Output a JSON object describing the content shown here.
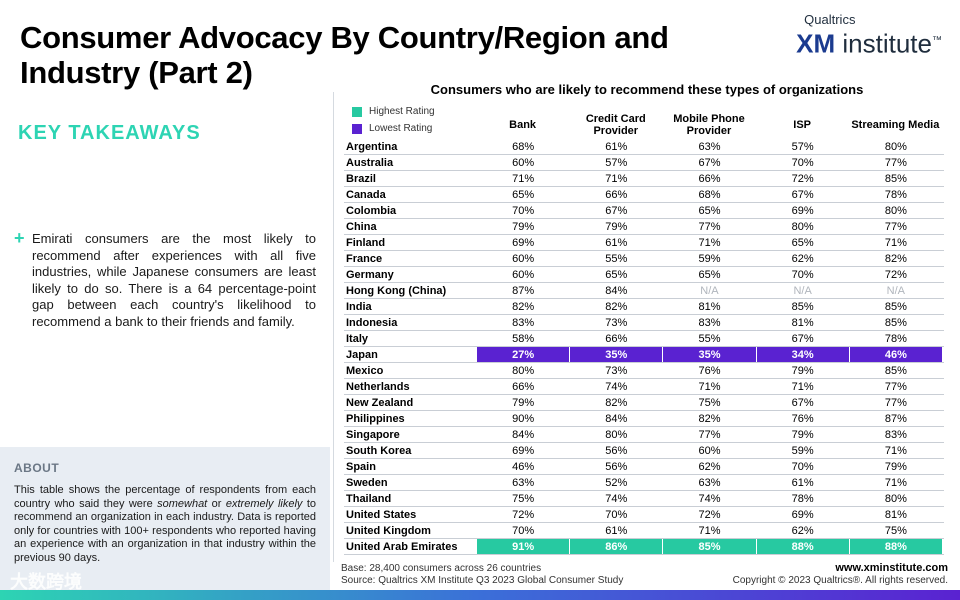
{
  "title": "Consumer Advocacy By Country/Region and Industry (Part 2)",
  "brand": {
    "top": "Qualtrics",
    "xm": "XM",
    "institute": "institute",
    "tm": "™"
  },
  "takeaways": {
    "heading": "KEY TAKEAWAYS",
    "bullet": "Emirati consumers are the most likely to recommend after experiences with all five industries, while Japanese consumers are least likely to do so. There is a 64 percentage-point gap between each country's likelihood to recommend a bank to their friends and family."
  },
  "about": {
    "heading": "ABOUT",
    "text_1": "This table shows the percentage of respondents from each country who said they were ",
    "text_somewhat": "somewhat",
    "text_2": " or ",
    "text_extremely": "extremely likely",
    "text_3": " to recommend an organization in each industry. Data is reported only for countries with 100+ respondents who reported having an experience with an organization in that industry within the previous 90 days."
  },
  "watermark": "大数跨境",
  "colors": {
    "highest": "#27c9a1",
    "lowest": "#5a22d1",
    "accent": "#2dd4b3"
  },
  "chart_data": {
    "type": "table",
    "title": "Consumers who are likely to recommend these types of organizations",
    "legend": {
      "highest": "Highest Rating",
      "lowest": "Lowest Rating"
    },
    "columns": [
      "Bank",
      "Credit Card Provider",
      "Mobile Phone Provider",
      "ISP",
      "Streaming Media"
    ],
    "rows": [
      {
        "country": "Argentina",
        "values": [
          "68%",
          "61%",
          "63%",
          "57%",
          "80%"
        ],
        "highlight": ""
      },
      {
        "country": "Australia",
        "values": [
          "60%",
          "57%",
          "67%",
          "70%",
          "77%"
        ],
        "highlight": ""
      },
      {
        "country": "Brazil",
        "values": [
          "71%",
          "71%",
          "66%",
          "72%",
          "85%"
        ],
        "highlight": ""
      },
      {
        "country": "Canada",
        "values": [
          "65%",
          "66%",
          "68%",
          "67%",
          "78%"
        ],
        "highlight": ""
      },
      {
        "country": "Colombia",
        "values": [
          "70%",
          "67%",
          "65%",
          "69%",
          "80%"
        ],
        "highlight": ""
      },
      {
        "country": "China",
        "values": [
          "79%",
          "79%",
          "77%",
          "80%",
          "77%"
        ],
        "highlight": ""
      },
      {
        "country": "Finland",
        "values": [
          "69%",
          "61%",
          "71%",
          "65%",
          "71%"
        ],
        "highlight": ""
      },
      {
        "country": "France",
        "values": [
          "60%",
          "55%",
          "59%",
          "62%",
          "82%"
        ],
        "highlight": ""
      },
      {
        "country": "Germany",
        "values": [
          "60%",
          "65%",
          "65%",
          "70%",
          "72%"
        ],
        "highlight": ""
      },
      {
        "country": "Hong Kong (China)",
        "values": [
          "87%",
          "84%",
          "N/A",
          "N/A",
          "N/A"
        ],
        "highlight": ""
      },
      {
        "country": "India",
        "values": [
          "82%",
          "82%",
          "81%",
          "85%",
          "85%"
        ],
        "highlight": ""
      },
      {
        "country": "Indonesia",
        "values": [
          "83%",
          "73%",
          "83%",
          "81%",
          "85%"
        ],
        "highlight": ""
      },
      {
        "country": "Italy",
        "values": [
          "58%",
          "66%",
          "55%",
          "67%",
          "78%"
        ],
        "highlight": ""
      },
      {
        "country": "Japan",
        "values": [
          "27%",
          "35%",
          "35%",
          "34%",
          "46%"
        ],
        "highlight": "lowest"
      },
      {
        "country": "Mexico",
        "values": [
          "80%",
          "73%",
          "76%",
          "79%",
          "85%"
        ],
        "highlight": ""
      },
      {
        "country": "Netherlands",
        "values": [
          "66%",
          "74%",
          "71%",
          "71%",
          "77%"
        ],
        "highlight": ""
      },
      {
        "country": "New Zealand",
        "values": [
          "79%",
          "82%",
          "75%",
          "67%",
          "77%"
        ],
        "highlight": ""
      },
      {
        "country": "Philippines",
        "values": [
          "90%",
          "84%",
          "82%",
          "76%",
          "87%"
        ],
        "highlight": ""
      },
      {
        "country": "Singapore",
        "values": [
          "84%",
          "80%",
          "77%",
          "79%",
          "83%"
        ],
        "highlight": ""
      },
      {
        "country": "South Korea",
        "values": [
          "69%",
          "56%",
          "60%",
          "59%",
          "71%"
        ],
        "highlight": ""
      },
      {
        "country": "Spain",
        "values": [
          "46%",
          "56%",
          "62%",
          "70%",
          "79%"
        ],
        "highlight": ""
      },
      {
        "country": "Sweden",
        "values": [
          "63%",
          "52%",
          "63%",
          "61%",
          "71%"
        ],
        "highlight": ""
      },
      {
        "country": "Thailand",
        "values": [
          "75%",
          "74%",
          "74%",
          "78%",
          "80%"
        ],
        "highlight": ""
      },
      {
        "country": "United States",
        "values": [
          "72%",
          "70%",
          "72%",
          "69%",
          "81%"
        ],
        "highlight": ""
      },
      {
        "country": "United Kingdom",
        "values": [
          "70%",
          "61%",
          "71%",
          "62%",
          "75%"
        ],
        "highlight": ""
      },
      {
        "country": "United Arab Emirates",
        "values": [
          "91%",
          "86%",
          "85%",
          "88%",
          "88%"
        ],
        "highlight": "highest"
      }
    ]
  },
  "footer": {
    "base": "Base: 28,400 consumers across 26 countries",
    "source": "Source: Qualtrics XM Institute Q3 2023 Global Consumer Study",
    "website": "www.xminstitute.com",
    "copyright": "Copyright © 2023 Qualtrics®. All rights reserved."
  }
}
